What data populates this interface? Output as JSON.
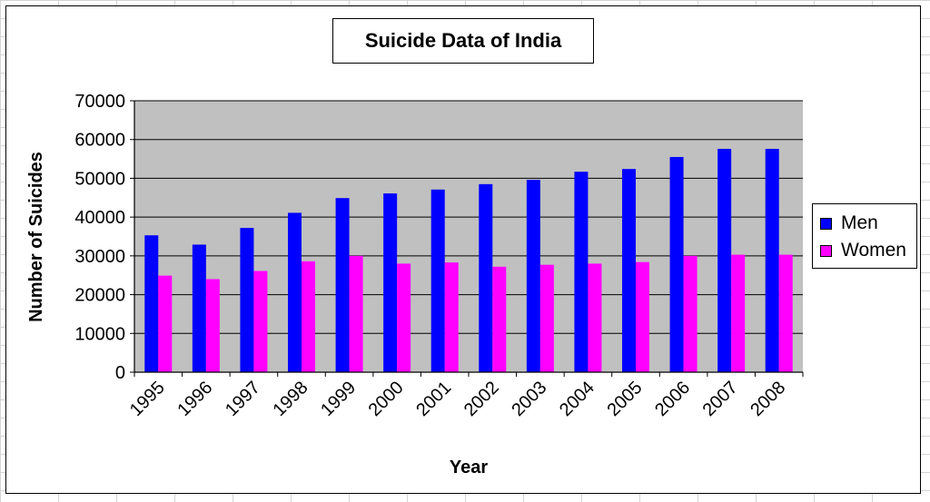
{
  "chart_data": {
    "type": "bar",
    "title": "Suicide Data of India",
    "xlabel": "Year",
    "ylabel": "Number of Suicides",
    "categories": [
      "1995",
      "1996",
      "1997",
      "1998",
      "1999",
      "2000",
      "2001",
      "2002",
      "2003",
      "2004",
      "2005",
      "2006",
      "2007",
      "2008"
    ],
    "series": [
      {
        "name": "Men",
        "color": "#0000ff",
        "values": [
          35300,
          32900,
          37200,
          41100,
          44900,
          46100,
          47100,
          48500,
          49600,
          51700,
          52400,
          55500,
          57600,
          57600
        ]
      },
      {
        "name": "Women",
        "color": "#ff00ff",
        "values": [
          24900,
          24000,
          26100,
          28600,
          30000,
          28000,
          28300,
          27200,
          27700,
          28000,
          28400,
          30000,
          30300,
          30300
        ]
      }
    ],
    "ylim": [
      0,
      70000
    ],
    "yticks": [
      "0",
      "10000",
      "20000",
      "30000",
      "40000",
      "50000",
      "60000",
      "70000"
    ],
    "grid": true,
    "plot_background": "#c0c0c0",
    "legend_position": "right"
  }
}
